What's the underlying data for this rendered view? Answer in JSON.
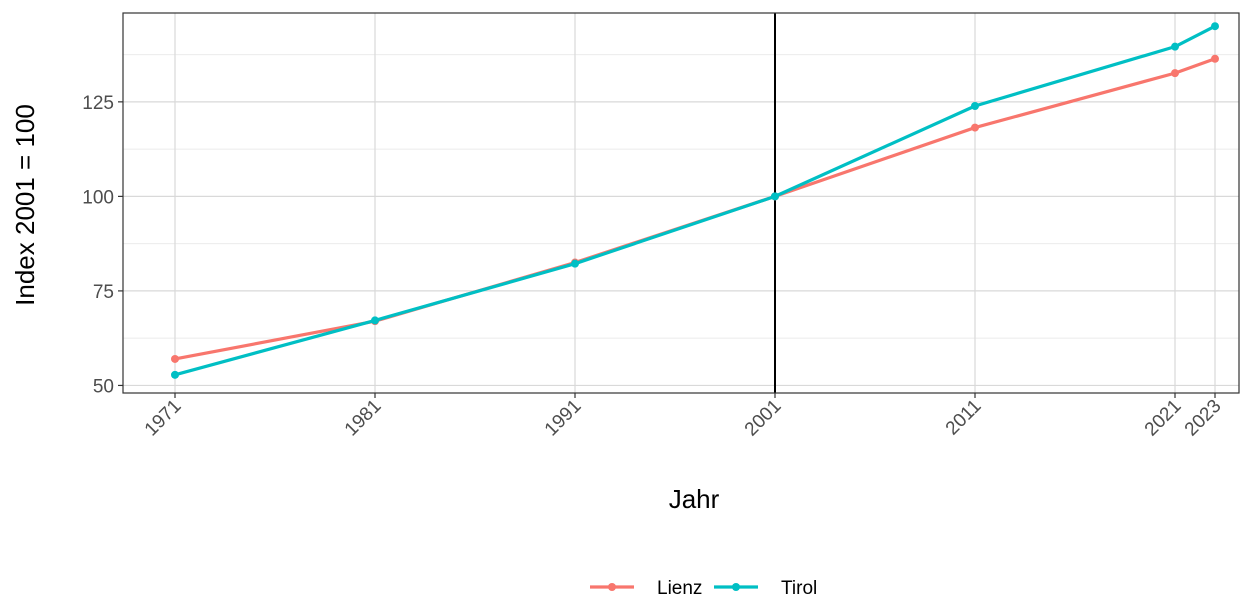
{
  "chart_data": {
    "type": "line",
    "title": "",
    "xlabel": "Jahr",
    "ylabel": "Index 2001 = 100",
    "x": [
      1971,
      1981,
      1991,
      2001,
      2011,
      2021,
      2023
    ],
    "x_tick_labels": [
      "1971",
      "1981",
      "1991",
      "2001",
      "2011",
      "2021",
      "2023"
    ],
    "y_ticks": [
      50,
      75,
      100,
      125
    ],
    "y_tick_labels": [
      "50",
      "75",
      "100",
      "125"
    ],
    "xlim": [
      1968.4,
      2024.2
    ],
    "ylim": [
      48,
      148.5
    ],
    "grid": true,
    "reference_line_x": 2001,
    "legend_position": "bottom",
    "series": [
      {
        "name": "Lienz",
        "color": "#F8766D",
        "values": [
          57.0,
          67.0,
          82.5,
          100.0,
          118.2,
          132.6,
          136.4
        ]
      },
      {
        "name": "Tirol",
        "color": "#00BFC4",
        "values": [
          52.8,
          67.2,
          82.2,
          100.0,
          123.9,
          139.6,
          145.0
        ]
      }
    ]
  }
}
